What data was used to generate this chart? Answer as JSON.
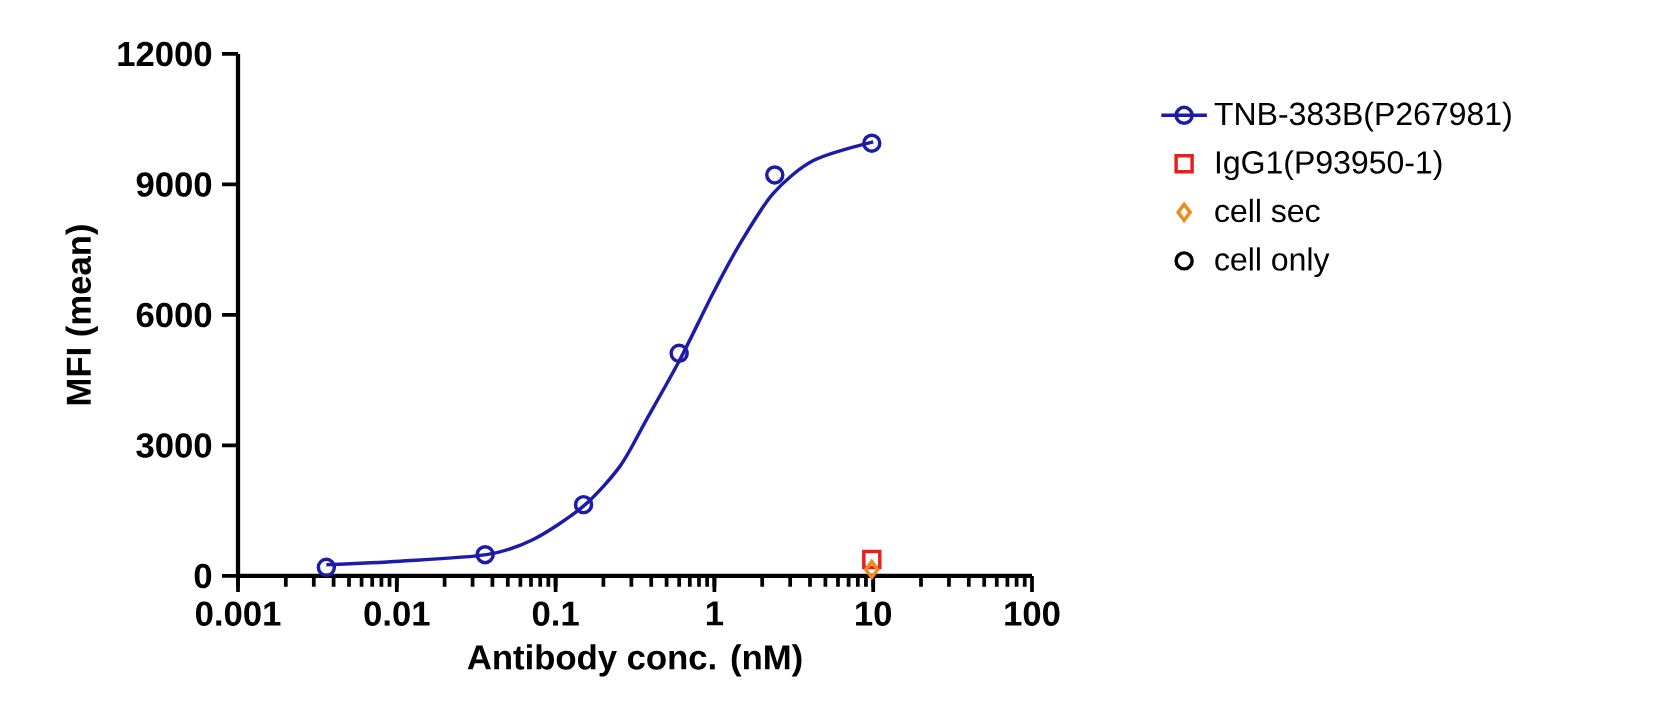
{
  "chart_data": {
    "type": "scatter",
    "xlabel": "Antibody conc. (nM)",
    "ylabel": "MFI (mean)",
    "log": "x",
    "xlim": [
      0.001,
      100
    ],
    "xticks": [
      0.001,
      0.01,
      0.1,
      1,
      10,
      100
    ],
    "ylim": [
      0,
      12000
    ],
    "yticks": [
      0,
      3000,
      6000,
      9000,
      12000
    ],
    "legend": "right",
    "series": [
      {
        "name": "TNB-383B(P267981)",
        "color": "#1c1ca8",
        "marker": "circle",
        "x": [
          0.0036,
          0.036,
          0.15,
          0.6,
          2.4,
          9.8
        ],
        "values": [
          200,
          490,
          1640,
          5120,
          9220,
          9950
        ]
      },
      {
        "type": "line",
        "color": "#1c1ca8",
        "marker": "none",
        "x": [
          0.0036,
          0.0105,
          0.0367,
          0.0723,
          0.149,
          0.254,
          0.373,
          0.606,
          0.98,
          1.45,
          2.34,
          4.2,
          10
        ],
        "values": [
          260,
          340,
          490,
          840,
          1600,
          2520,
          3590,
          4970,
          6500,
          7640,
          8790,
          9550,
          9980
        ]
      },
      {
        "name": "IgG1(P93950-1)",
        "color": "#e8201c",
        "marker": "square",
        "x": [
          9.8
        ],
        "values": [
          380
        ]
      },
      {
        "name": "cell sec",
        "color": "#f08a1c",
        "marker": "diamond",
        "x": [
          9.8
        ],
        "values": [
          150
        ]
      },
      {
        "name": "cell only",
        "color": "#000000",
        "marker": "circle",
        "values": [
          null
        ]
      }
    ]
  }
}
